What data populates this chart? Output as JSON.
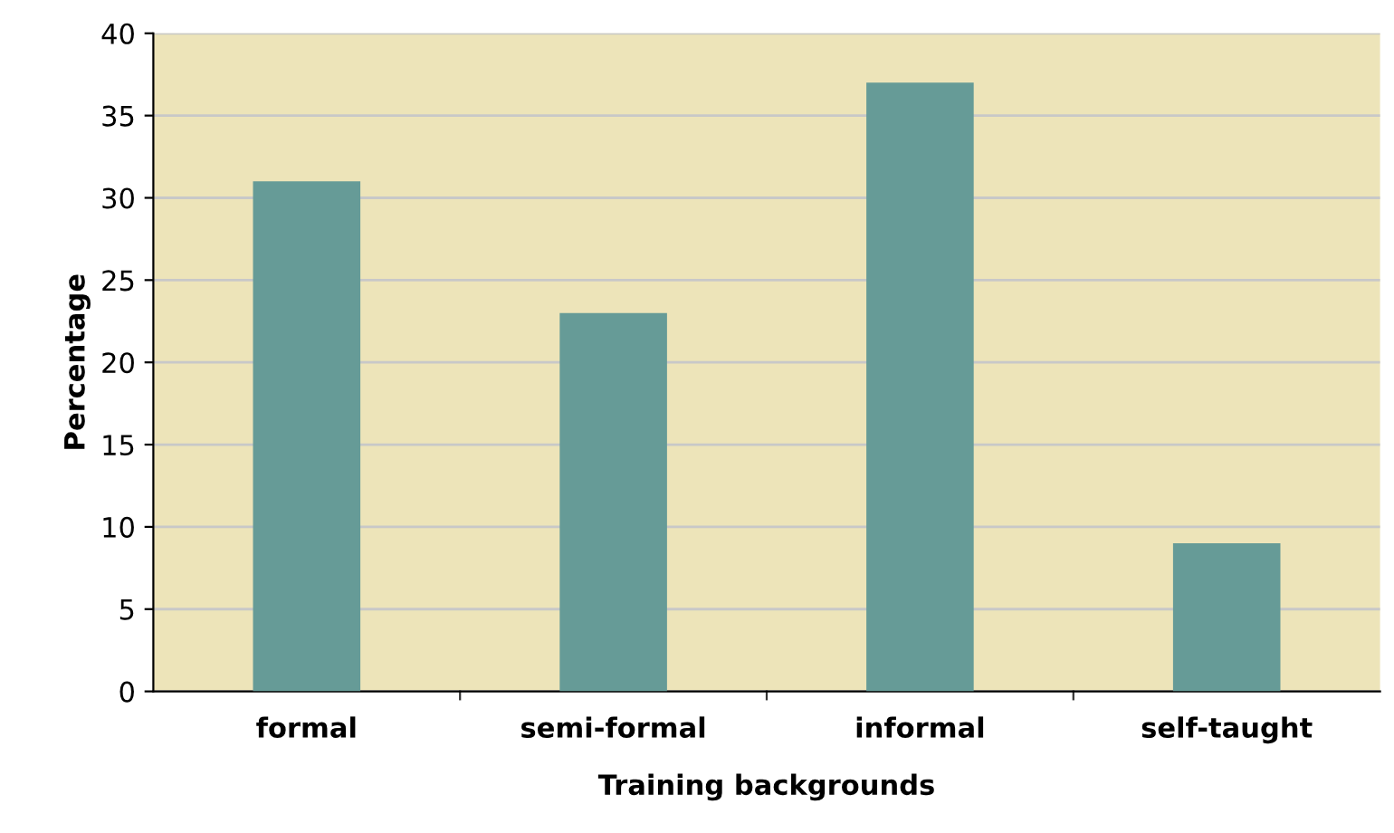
{
  "chart_data": {
    "type": "bar",
    "xlabel": "Training backgrounds",
    "ylabel": "Percentage",
    "categories": [
      "formal",
      "semi-formal",
      "informal",
      "self-taught"
    ],
    "values": [
      31,
      23,
      37,
      9
    ],
    "color": "#669b97",
    "ylim": [
      0,
      40
    ],
    "yticks": [
      0,
      5,
      10,
      15,
      20,
      25,
      30,
      35,
      40
    ],
    "grid": "y",
    "legend": false
  }
}
